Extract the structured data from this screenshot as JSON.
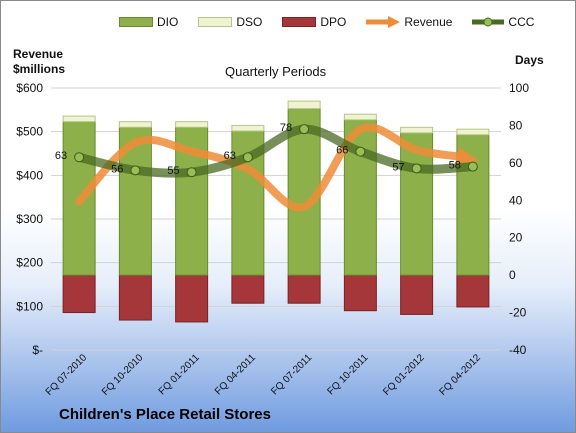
{
  "chart_data": {
    "type": "bar",
    "title": "Children's Place Retail Stores",
    "subtitle": "Quarterly Periods",
    "left_axis_label_line1": "Revenue",
    "left_axis_label_line2": "$millions",
    "right_axis_label": "Days",
    "categories": [
      "FQ 07-2010",
      "FQ 10-2010",
      "FQ 01-2011",
      "FQ 04-2011",
      "FQ 07-2011",
      "FQ 10-2011",
      "FQ 01-2012",
      "FQ 04-2012"
    ],
    "left_axis": {
      "min": 0,
      "max": 600,
      "ticks": [
        "$-",
        "$100",
        "$200",
        "$300",
        "$400",
        "$500",
        "$600"
      ]
    },
    "right_axis": {
      "min": -40,
      "max": 100,
      "ticks": [
        "-40",
        "-20",
        "0",
        "20",
        "40",
        "60",
        "80",
        "100"
      ]
    },
    "series": [
      {
        "name": "DIO",
        "axis": "right",
        "kind": "stacked-bar",
        "values": [
          82,
          79,
          79,
          77,
          89,
          83,
          76,
          75
        ]
      },
      {
        "name": "DSO",
        "axis": "right",
        "kind": "stacked-bar",
        "values": [
          3,
          3,
          3,
          3,
          4,
          3,
          3,
          3
        ]
      },
      {
        "name": "DPO",
        "axis": "right",
        "kind": "bar-negative",
        "values": [
          -20,
          -24,
          -25,
          -15,
          -15,
          -19,
          -21,
          -17
        ]
      },
      {
        "name": "Revenue",
        "axis": "left",
        "kind": "line",
        "values": [
          340,
          475,
          455,
          415,
          328,
          505,
          458,
          437
        ]
      },
      {
        "name": "CCC",
        "axis": "right",
        "kind": "line",
        "values": [
          63,
          56,
          55,
          63,
          78,
          66,
          57,
          58
        ],
        "labels": [
          "63",
          "56",
          "55",
          "63",
          "78",
          "66",
          "57",
          "58"
        ]
      }
    ],
    "colors": {
      "DIO": "#8db04a",
      "DSO": "#eef4cf",
      "DPO": "#a5373a",
      "Revenue": "#ee8c37",
      "CCC": "#4a6a22"
    },
    "legend_position": "top"
  }
}
